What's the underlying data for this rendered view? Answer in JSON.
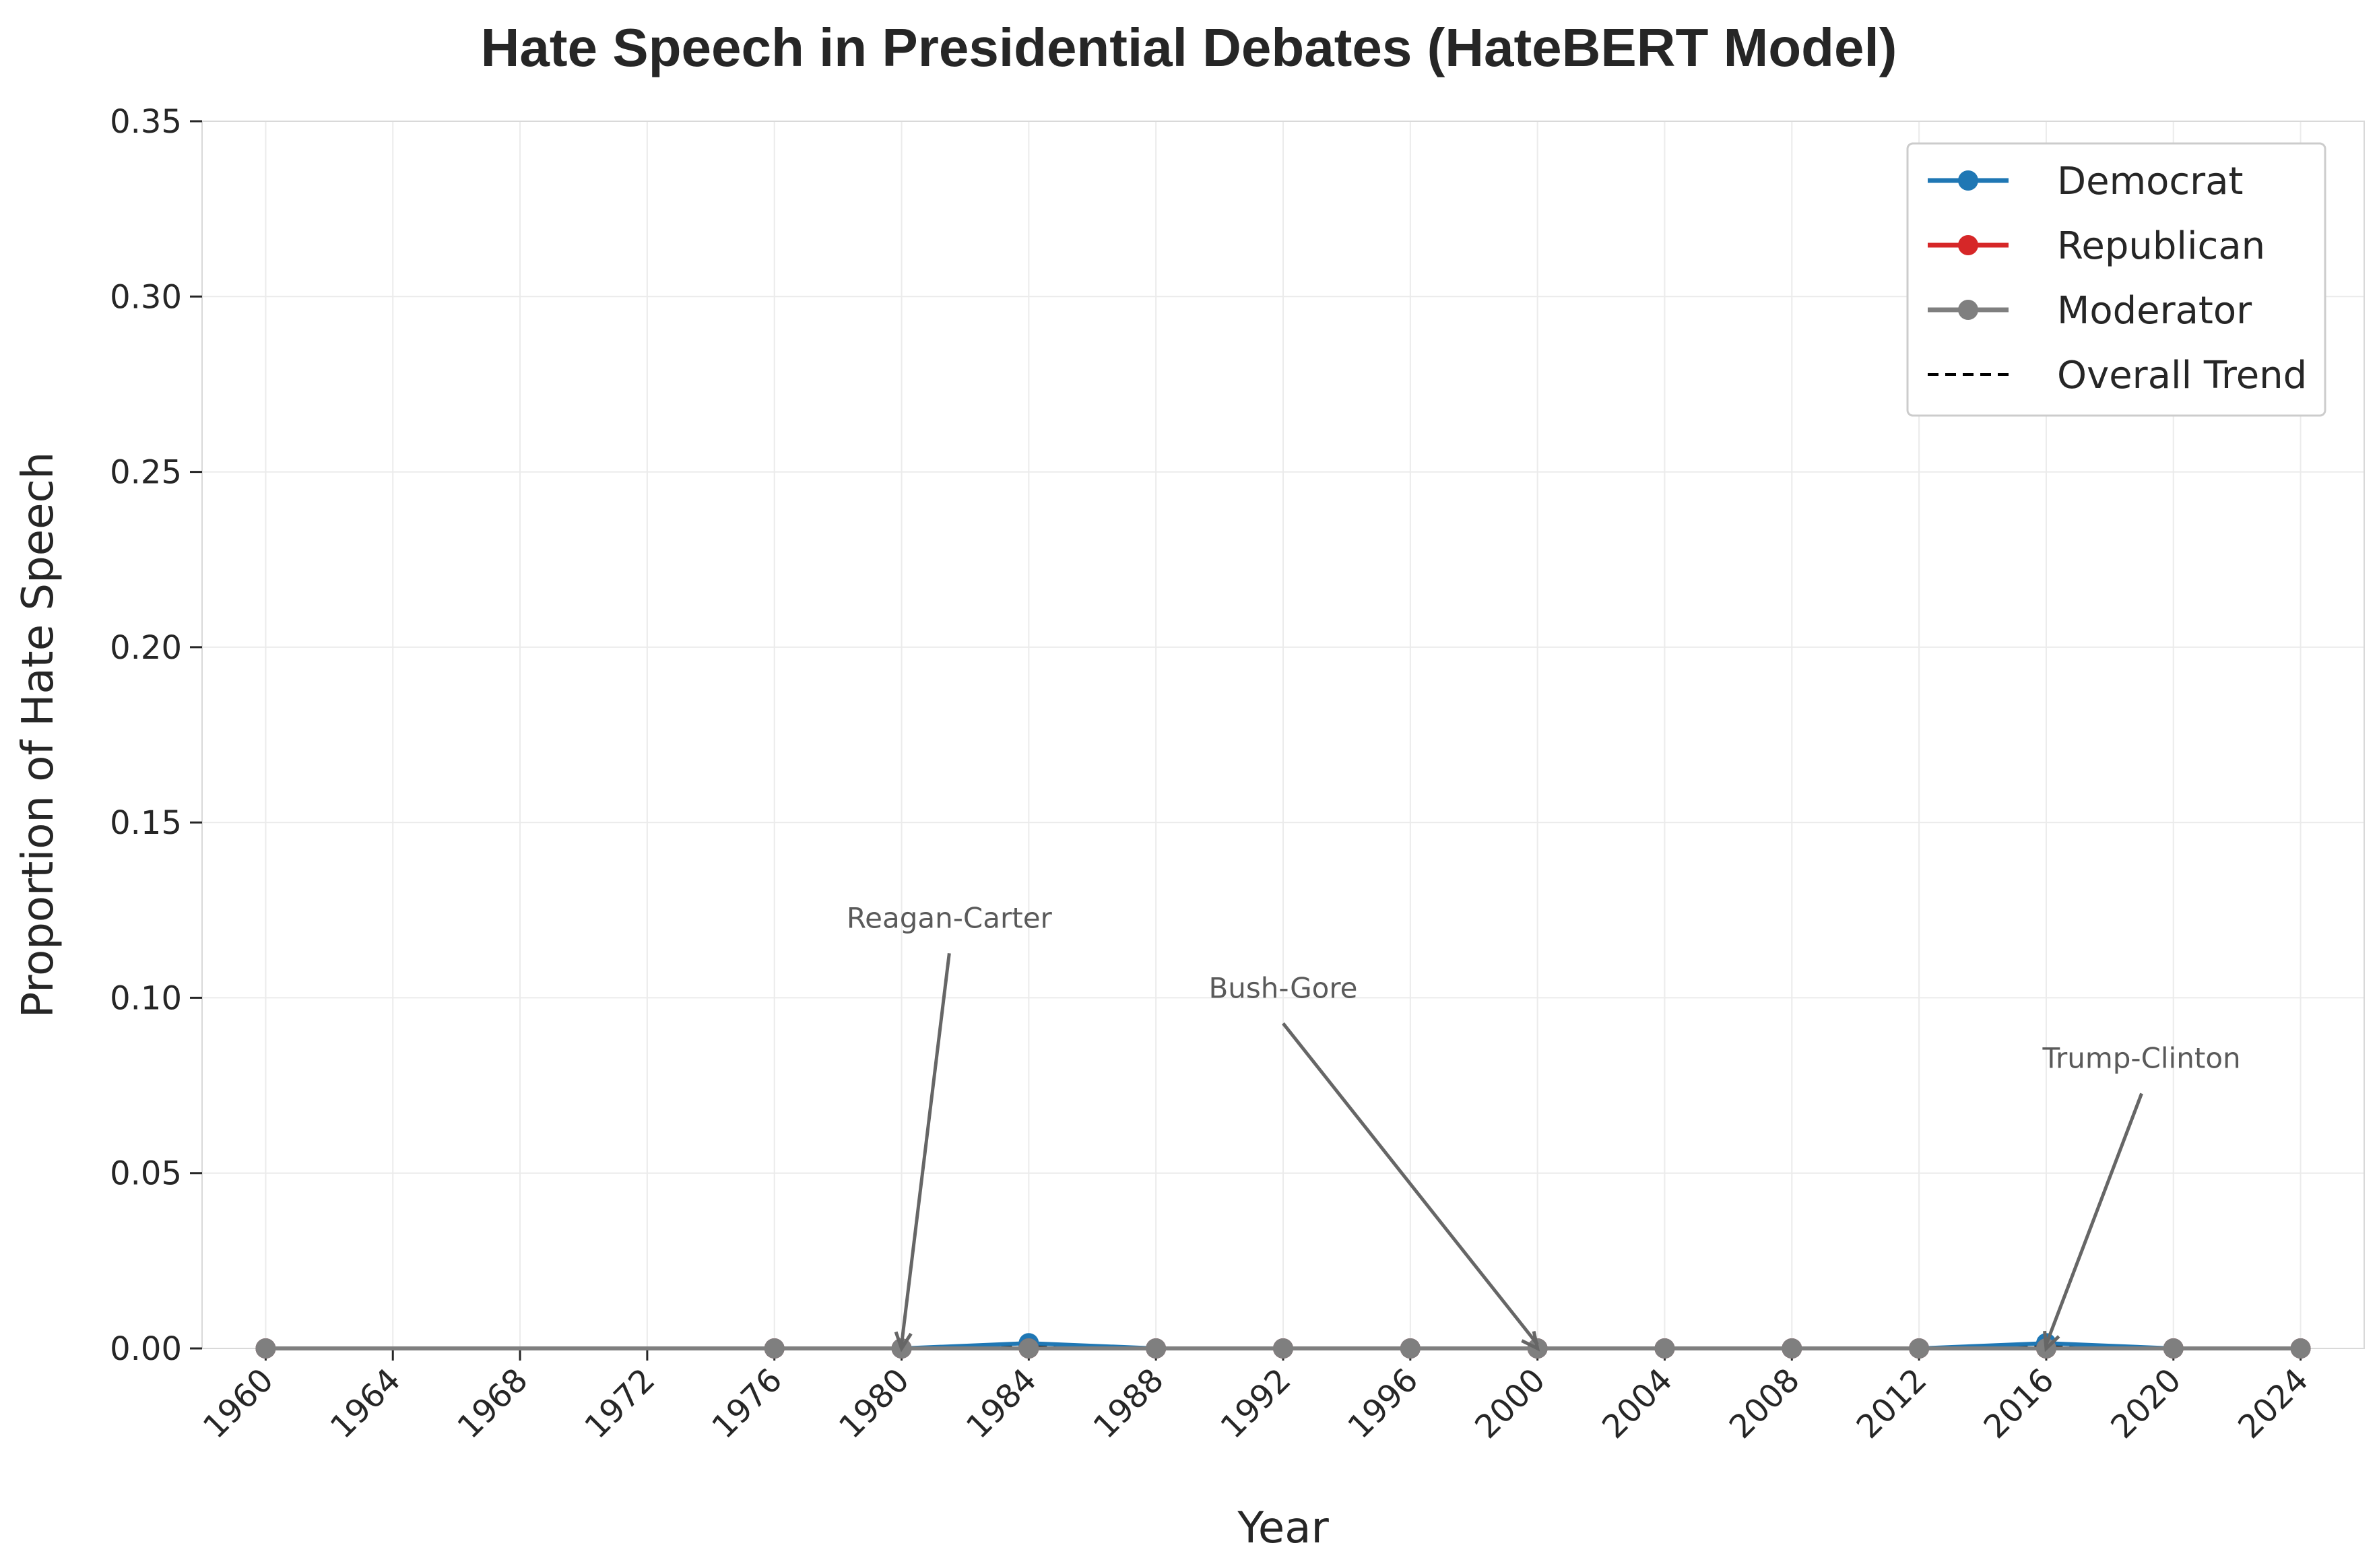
{
  "chart_data": {
    "type": "line",
    "title": "Hate Speech in Presidential Debates (HateBERT Model)",
    "xlabel": "Year",
    "ylabel": "Proportion of Hate Speech",
    "xlim": [
      1958,
      2026
    ],
    "ylim": [
      0,
      0.35
    ],
    "x_ticks": [
      1960,
      1964,
      1968,
      1972,
      1976,
      1980,
      1984,
      1988,
      1992,
      1996,
      2000,
      2004,
      2008,
      2012,
      2016,
      2020,
      2024
    ],
    "y_ticks": [
      "0.00",
      "0.05",
      "0.10",
      "0.15",
      "0.20",
      "0.25",
      "0.30",
      "0.35"
    ],
    "grid": true,
    "legend_position": "top-right",
    "x": [
      1960,
      1976,
      1980,
      1984,
      1988,
      1992,
      1996,
      2000,
      2004,
      2008,
      2012,
      2016,
      2020,
      2024
    ],
    "series": [
      {
        "name": "Democrat",
        "color": "#1f77b4",
        "style": "solid-marker",
        "values": [
          0,
          0,
          0,
          0.0015,
          0,
          0,
          0,
          0,
          0,
          0,
          0,
          0.0015,
          0,
          0
        ]
      },
      {
        "name": "Republican",
        "color": "#d62728",
        "style": "solid-marker",
        "values": [
          0,
          0,
          0,
          0,
          0,
          0,
          0,
          0,
          0,
          0,
          0,
          0,
          0,
          0
        ]
      },
      {
        "name": "Moderator",
        "color": "#7f7f7f",
        "style": "solid-marker",
        "values": [
          0,
          0,
          0,
          0,
          0,
          0,
          0,
          0,
          0,
          0,
          0,
          0,
          0,
          0
        ]
      },
      {
        "name": "Overall Trend",
        "color": "#000000",
        "style": "dashed",
        "values": [
          0,
          0,
          0,
          0.0005,
          0,
          0,
          0,
          0,
          0,
          0,
          0,
          0.0005,
          0,
          0
        ]
      }
    ],
    "annotations": [
      {
        "text": "Reagan-Carter",
        "x": 1980,
        "y": 0,
        "text_x": 1981.5,
        "text_y": 0.12
      },
      {
        "text": "Bush-Gore",
        "x": 2000,
        "y": 0,
        "text_x": 1992,
        "text_y": 0.1
      },
      {
        "text": "Trump-Clinton",
        "x": 2016,
        "y": 0,
        "text_x": 2019,
        "text_y": 0.08
      }
    ]
  }
}
